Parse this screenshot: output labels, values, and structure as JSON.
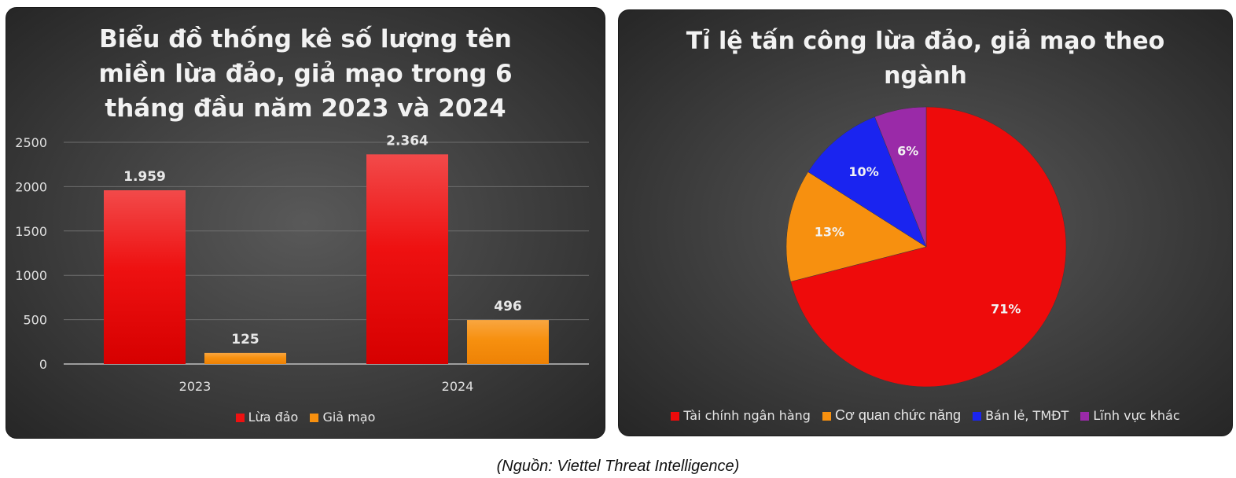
{
  "chart_data": [
    {
      "type": "bar",
      "title": "Biểu đồ thống kê số lượng tên miền lừa đảo, giả mạo trong 6 tháng đầu năm 2023 và 2024",
      "categories": [
        "2023",
        "2024"
      ],
      "series": [
        {
          "name": "Lừa đảo",
          "values": [
            1959,
            2364
          ],
          "labels": [
            "1.959",
            "2.364"
          ],
          "color": "#ee1111"
        },
        {
          "name": "Giả mạo",
          "values": [
            125,
            496
          ],
          "labels": [
            "125",
            "496"
          ],
          "color": "#f7900f"
        }
      ],
      "ylim": [
        0,
        2500
      ],
      "yticks": [
        "0",
        "500",
        "1000",
        "1500",
        "2000",
        "2500"
      ],
      "grid": true,
      "legend": "bottom"
    },
    {
      "type": "pie",
      "title": "Tỉ lệ tấn công lừa đảo, giả mạo theo ngành",
      "slices": [
        {
          "name": "Tài chính ngân hàng",
          "value": 71,
          "label": "71%",
          "color": "#ee0b0b"
        },
        {
          "name": "Cơ quan chức năng",
          "value": 13,
          "label": "13%",
          "color": "#f7900f"
        },
        {
          "name": "Bán lẻ, TMĐT",
          "value": 10,
          "label": "10%",
          "color": "#1a24f0"
        },
        {
          "name": "Lĩnh vực khác",
          "value": 6,
          "label": "6%",
          "color": "#9a2aa8"
        }
      ],
      "legend": "bottom"
    }
  ],
  "source": "(Nguồn: Viettel Threat Intelligence)"
}
